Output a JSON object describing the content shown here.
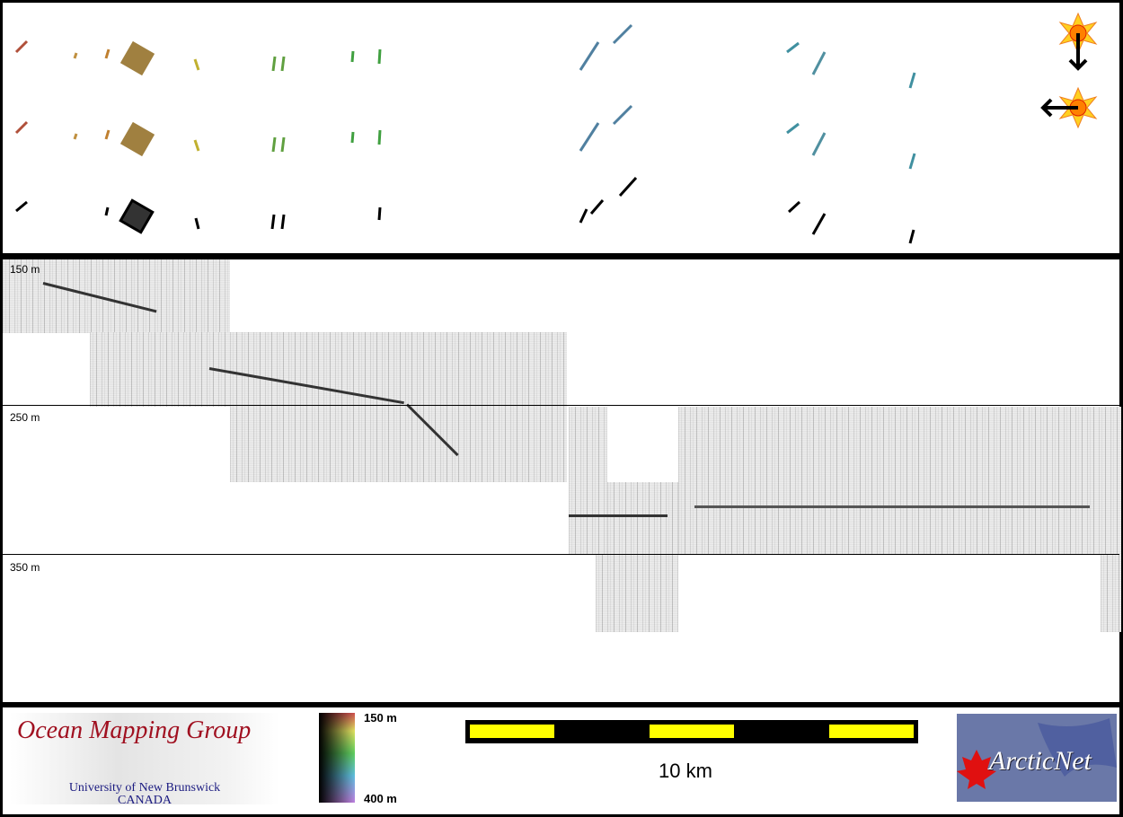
{
  "depth_labels": [
    "150 m",
    "250 m",
    "350 m"
  ],
  "logo_omg": {
    "title": "Ocean Mapping Group",
    "line1": "University of New Brunswick",
    "line2": "CANADA"
  },
  "colorbar": {
    "top_label": "150 m",
    "bottom_label": "400 m"
  },
  "scale_bar": {
    "label": "10 km",
    "fill_color": "#ffff00"
  },
  "logo_arcticnet": {
    "text": "ArcticNet"
  },
  "icons": [
    "sun-arrow-down-icon",
    "sun-arrow-left-icon"
  ]
}
